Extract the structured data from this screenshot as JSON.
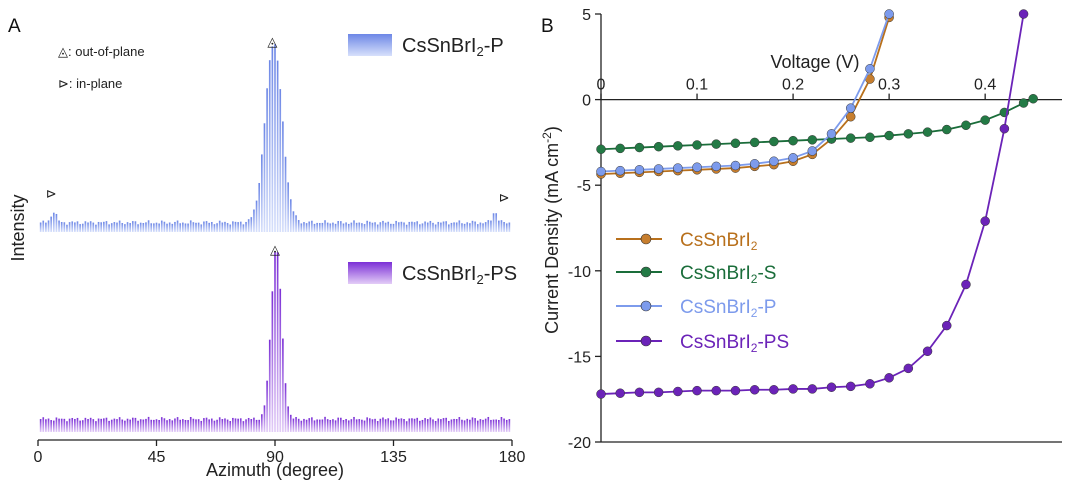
{
  "chart_data": [
    {
      "panel": "A",
      "type": "bar",
      "xlabel": "Azimuth (degree)",
      "ylabel": "Intensity",
      "xlim": [
        0,
        180
      ],
      "xticks": [
        0,
        45,
        90,
        135,
        180
      ],
      "annotations": {
        "oop_symbol": "◬",
        "oop_text": ": out-of-plane",
        "ip_symbol": "⊳",
        "ip_text": ": in-plane"
      },
      "series": [
        {
          "name": "CsSnBrI2-P",
          "legend": {
            "base": "CsSnBrI",
            "sub": "2",
            "suffix": "-P"
          },
          "color_top": "#6d87e6",
          "color_bottom": "#d7e0fb",
          "baseline": 0.05,
          "noise": 0.012,
          "peaks": [
            {
              "center": 89.5,
              "amp": 0.95,
              "sigma": 3.2
            },
            {
              "center": 6,
              "amp": 0.06,
              "sigma": 1.0
            },
            {
              "center": 173.5,
              "amp": 0.06,
              "sigma": 0.9
            }
          ],
          "markers": [
            {
              "type": "oop",
              "x": 89
            },
            {
              "type": "ip",
              "x": 5
            },
            {
              "type": "ip",
              "x": 177
            }
          ]
        },
        {
          "name": "CsSnBrI2-PS",
          "legend": {
            "base": "CsSnBrI",
            "sub": "2",
            "suffix": "-PS"
          },
          "color_top": "#7b2fd6",
          "color_bottom": "#e3cdf7",
          "baseline": 0.07,
          "noise": 0.012,
          "peaks": [
            {
              "center": 90.5,
              "amp": 0.93,
              "sigma": 2.0
            }
          ],
          "markers": [
            {
              "type": "oop",
              "x": 90
            }
          ]
        }
      ]
    },
    {
      "panel": "B",
      "type": "line",
      "xlabel": "Voltage (V)",
      "ylabel_base": "Current Density (mA cm",
      "ylabel_sup": "-2",
      "ylabel_end": ")",
      "xlim": [
        0,
        0.48
      ],
      "ylim": [
        -20,
        5
      ],
      "xticks": [
        0,
        0.1,
        0.2,
        0.3,
        0.4
      ],
      "xtick_labels": [
        "0",
        "0.1",
        "0.2",
        "0.3",
        "0.4"
      ],
      "yticks": [
        5,
        0,
        -5,
        -10,
        -15,
        -20
      ],
      "ytick_labels": [
        "5",
        "0",
        "-5",
        "-10",
        "-15",
        "-20"
      ],
      "series": [
        {
          "name": "CsSnBrI2",
          "legend": {
            "base": "CsSnBrI",
            "sub": "2",
            "suffix": ""
          },
          "color": "#b8701c",
          "marker_fill": "#c77e2e",
          "label_color": "#b8701c",
          "points": [
            [
              0,
              -4.35
            ],
            [
              0.02,
              -4.3
            ],
            [
              0.04,
              -4.25
            ],
            [
              0.06,
              -4.2
            ],
            [
              0.08,
              -4.15
            ],
            [
              0.1,
              -4.1
            ],
            [
              0.12,
              -4.05
            ],
            [
              0.14,
              -4.0
            ],
            [
              0.16,
              -3.9
            ],
            [
              0.18,
              -3.8
            ],
            [
              0.2,
              -3.6
            ],
            [
              0.22,
              -3.2
            ],
            [
              0.24,
              -2.3
            ],
            [
              0.26,
              -1.0
            ],
            [
              0.28,
              1.2
            ],
            [
              0.3,
              4.8
            ]
          ]
        },
        {
          "name": "CsSnBrI2-S",
          "legend": {
            "base": "CsSnBrI",
            "sub": "2",
            "suffix": "-S"
          },
          "color": "#1a6d3a",
          "marker_fill": "#237a45",
          "label_color": "#1a6d3a",
          "points": [
            [
              0,
              -2.9
            ],
            [
              0.02,
              -2.85
            ],
            [
              0.04,
              -2.8
            ],
            [
              0.06,
              -2.75
            ],
            [
              0.08,
              -2.7
            ],
            [
              0.1,
              -2.65
            ],
            [
              0.12,
              -2.6
            ],
            [
              0.14,
              -2.55
            ],
            [
              0.16,
              -2.5
            ],
            [
              0.18,
              -2.45
            ],
            [
              0.2,
              -2.4
            ],
            [
              0.22,
              -2.35
            ],
            [
              0.24,
              -2.3
            ],
            [
              0.26,
              -2.25
            ],
            [
              0.28,
              -2.2
            ],
            [
              0.3,
              -2.1
            ],
            [
              0.32,
              -2.0
            ],
            [
              0.34,
              -1.9
            ],
            [
              0.36,
              -1.75
            ],
            [
              0.38,
              -1.5
            ],
            [
              0.4,
              -1.2
            ],
            [
              0.42,
              -0.75
            ],
            [
              0.44,
              -0.2
            ],
            [
              0.45,
              0.05
            ]
          ]
        },
        {
          "name": "CsSnBrI2-P",
          "legend": {
            "base": "CsSnBrI",
            "sub": "2",
            "suffix": "-P"
          },
          "color": "#7d9bec",
          "marker_fill": "#7d9bec",
          "label_color": "#7d9bec",
          "points": [
            [
              0,
              -4.2
            ],
            [
              0.02,
              -4.15
            ],
            [
              0.04,
              -4.1
            ],
            [
              0.06,
              -4.05
            ],
            [
              0.08,
              -4.0
            ],
            [
              0.1,
              -3.95
            ],
            [
              0.12,
              -3.9
            ],
            [
              0.14,
              -3.85
            ],
            [
              0.16,
              -3.75
            ],
            [
              0.18,
              -3.6
            ],
            [
              0.2,
              -3.4
            ],
            [
              0.22,
              -3.0
            ],
            [
              0.24,
              -2.0
            ],
            [
              0.26,
              -0.5
            ],
            [
              0.28,
              1.8
            ],
            [
              0.3,
              5.0
            ]
          ]
        },
        {
          "name": "CsSnBrI2-PS",
          "legend": {
            "base": "CsSnBrI",
            "sub": "2",
            "suffix": "-PS"
          },
          "color": "#6b23b8",
          "marker_fill": "#6b23b8",
          "label_color": "#6b23b8",
          "points": [
            [
              0,
              -17.2
            ],
            [
              0.02,
              -17.15
            ],
            [
              0.04,
              -17.1
            ],
            [
              0.06,
              -17.1
            ],
            [
              0.08,
              -17.05
            ],
            [
              0.1,
              -17.0
            ],
            [
              0.12,
              -17.0
            ],
            [
              0.14,
              -17.0
            ],
            [
              0.16,
              -16.95
            ],
            [
              0.18,
              -16.95
            ],
            [
              0.2,
              -16.9
            ],
            [
              0.22,
              -16.9
            ],
            [
              0.24,
              -16.8
            ],
            [
              0.26,
              -16.75
            ],
            [
              0.28,
              -16.6
            ],
            [
              0.3,
              -16.25
            ],
            [
              0.32,
              -15.7
            ],
            [
              0.34,
              -14.7
            ],
            [
              0.36,
              -13.2
            ],
            [
              0.38,
              -10.8
            ],
            [
              0.4,
              -7.1
            ],
            [
              0.42,
              -1.7
            ],
            [
              0.44,
              5.0
            ]
          ]
        }
      ]
    }
  ],
  "panel_labels": {
    "a": "A",
    "b": "B"
  }
}
